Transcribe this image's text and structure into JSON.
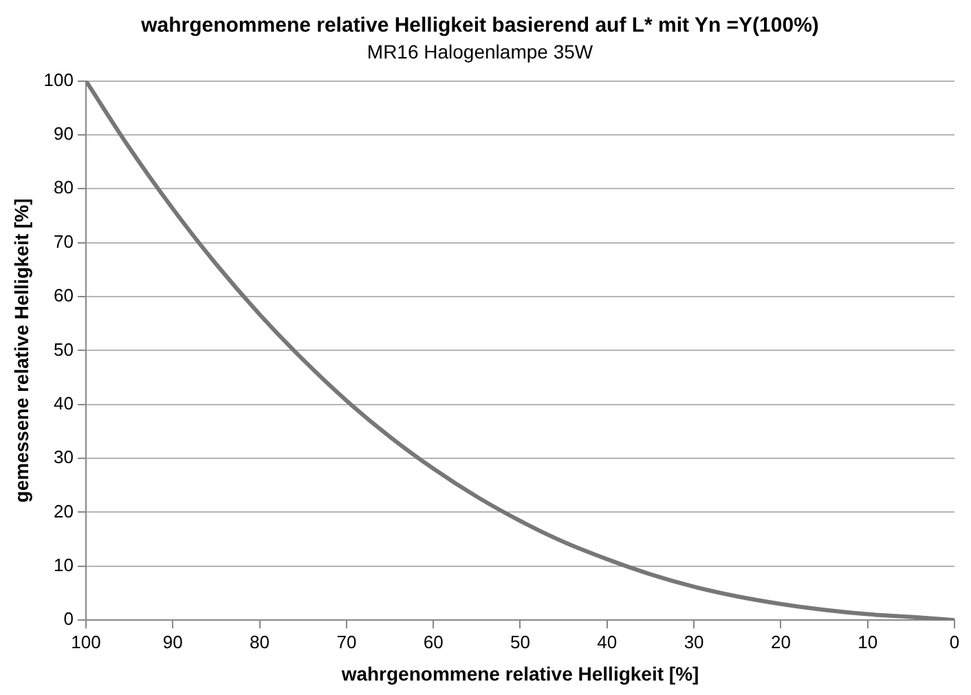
{
  "chart_data": {
    "type": "line",
    "title": "wahrgenommene relative Helligkeit basierend auf L* mit Yn =Y(100%)",
    "subtitle": "MR16 Halogenlampe 35W",
    "xlabel": "wahrgenommene relative Helligkeit [%]",
    "ylabel": "gemessene relative Helligkeit [%]",
    "x": [
      100,
      95,
      90,
      85,
      80,
      75,
      70,
      65,
      60,
      55,
      50,
      45,
      40,
      35,
      30,
      25,
      20,
      15,
      10,
      5,
      0
    ],
    "series": [
      {
        "color": "#777777",
        "values": [
          100,
          87.6,
          76.3,
          66.0,
          56.7,
          48.3,
          40.7,
          34.0,
          28.1,
          22.9,
          18.4,
          14.5,
          11.3,
          8.5,
          6.2,
          4.4,
          3.0,
          1.9,
          1.1,
          0.6,
          0
        ]
      }
    ],
    "xlim": [
      100,
      0
    ],
    "xticks": [
      100,
      90,
      80,
      70,
      60,
      50,
      40,
      30,
      20,
      10,
      0
    ],
    "ylim": [
      0,
      100
    ],
    "yticks": [
      0,
      10,
      20,
      30,
      40,
      50,
      60,
      70,
      80,
      90,
      100
    ],
    "grid": "y",
    "legend": false,
    "marker": "none",
    "line_style": "solid"
  }
}
